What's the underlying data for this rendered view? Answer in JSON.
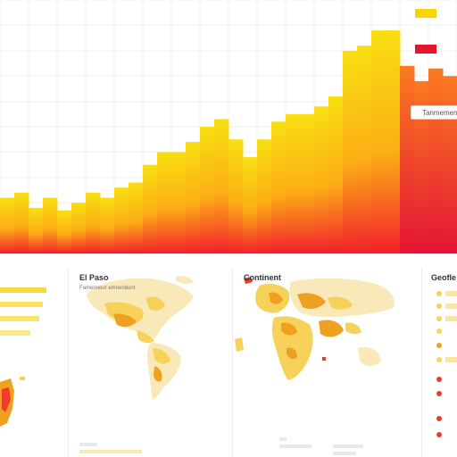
{
  "colors": {
    "bar_top_yellow": "#f8d80a",
    "bar_mid_orange": "#fca913",
    "bar_bottom_red": "#f2182c",
    "legend_yellow": "#f6d500",
    "legend_red": "#e5142b",
    "map_yellow": "#f7d25a",
    "map_orange": "#f0a020",
    "map_light": "#fae9b8",
    "grid": "#f0f0f0"
  },
  "main_chart": {
    "bar_levels": [
      0.78,
      0.76,
      0.82,
      0.78,
      0.83,
      0.8,
      0.76,
      0.78,
      0.74,
      0.72,
      0.65,
      0.6,
      0.6,
      0.56,
      0.5,
      0.47,
      0.55,
      0.62,
      0.55,
      0.48,
      0.45,
      0.45,
      0.42,
      0.38,
      0.2,
      0.18,
      0.12,
      0.12,
      0.26,
      0.32,
      0.27,
      0.3
    ],
    "highlight_from_index": 28,
    "legend_tooltip": "Tanmemen ia"
  },
  "panels": [
    {
      "id": "left-partial",
      "title": "",
      "subtitle": ""
    },
    {
      "id": "el-paso",
      "title": "El Paso",
      "subtitle": "Famenneur emnenbunt"
    },
    {
      "id": "continent",
      "title": "Continent",
      "subtitle": ""
    },
    {
      "id": "right-partial",
      "title": "Geofle",
      "subtitle": ""
    }
  ]
}
